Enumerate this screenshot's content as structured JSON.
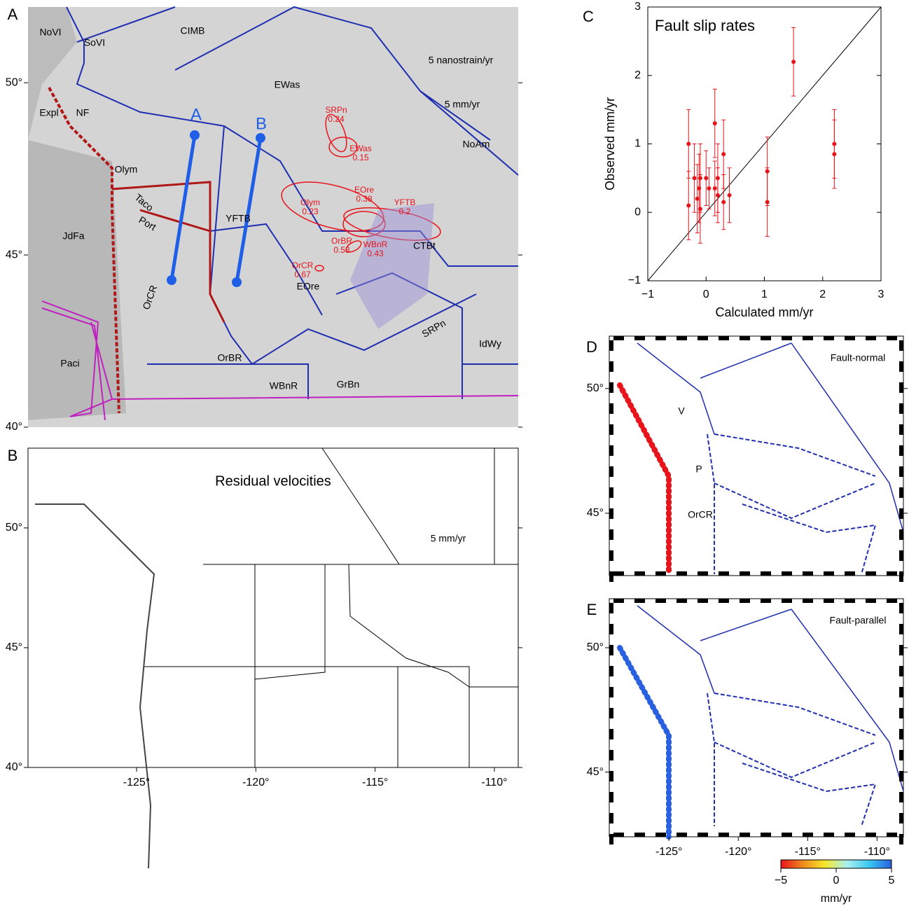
{
  "chart_data": [
    {
      "type": "map",
      "panel": "A",
      "labels": [
        "NoVI",
        "SoVI",
        "CIMB",
        "EWas",
        "NoAm",
        "Expl",
        "NF",
        "Olym",
        "Taco",
        "Port",
        "YFTB",
        "JdFa",
        "OrCR",
        "Paci",
        "OrBR",
        "WBnR",
        "GrBn",
        "EOre",
        "CTBt",
        "SRPn",
        "IdWy",
        "A",
        "B",
        "5  nanostrain/yr",
        "5 mm/yr"
      ],
      "strain_labels": [
        {
          "name": "SRPn",
          "value": 0.24
        },
        {
          "name": "EWas",
          "value": 0.15
        },
        {
          "name": "EOre",
          "value": 0.38
        },
        {
          "name": "Olym",
          "value": 0.23
        },
        {
          "name": "YFTB",
          "value": 0.2
        },
        {
          "name": "OrBR",
          "value": 0.53
        },
        {
          "name": "WBnR",
          "value": 0.43
        },
        {
          "name": "OrCR",
          "value": 0.67
        }
      ],
      "ylim": [
        40,
        52.2
      ],
      "yticks": [
        {
          "value": 50,
          "label": "50°"
        },
        {
          "value": 45,
          "label": "45°"
        },
        {
          "value": 40,
          "label": "40°"
        }
      ]
    },
    {
      "type": "map",
      "panel": "B",
      "title": "Residual velocities",
      "labels": [
        "5 mm/yr"
      ],
      "xlim": [
        -129.55,
        -109.0
      ],
      "xticks": [
        {
          "value": -125,
          "label": "-125°"
        },
        {
          "value": -120,
          "label": "-120°"
        },
        {
          "value": -115,
          "label": "-115°"
        },
        {
          "value": -110,
          "label": "-110°"
        }
      ],
      "ylim": [
        40,
        53.33
      ],
      "yticks": [
        {
          "value": 50,
          "label": "50°"
        },
        {
          "value": 45,
          "label": "45°"
        },
        {
          "value": 40,
          "label": "40°"
        }
      ]
    },
    {
      "type": "scatter",
      "panel": "C",
      "title": "Fault slip rates",
      "x_label": "Calculated mm/yr",
      "y_label": "Observed mm/yr",
      "xlim": [
        -1,
        3
      ],
      "ylim": [
        -1,
        3
      ],
      "xticks": [
        {
          "value": -1,
          "label": "−1"
        },
        0,
        1,
        2,
        3
      ],
      "yticks": [
        {
          "value": -1,
          "label": "−1"
        },
        0,
        1,
        2,
        3
      ],
      "series": [
        {
          "color": "#e8141b",
          "x": [
            -0.3,
            -0.3,
            -0.2,
            -0.15,
            -0.12,
            -0.1,
            -0.1,
            0.0,
            0.05,
            0.15,
            0.15,
            0.2,
            0.2,
            0.3,
            0.3,
            0.4,
            1.05,
            1.05,
            1.5,
            2.2,
            2.2
          ],
          "y": [
            1.0,
            0.1,
            0.5,
            0.2,
            0.35,
            0.05,
            0.5,
            0.5,
            0.35,
            1.3,
            0.35,
            0.5,
            0.25,
            0.85,
            0.15,
            0.25,
            0.6,
            0.15,
            2.2,
            0.85,
            1.0
          ],
          "error": [
            0.5,
            0.5,
            0.5,
            0.5,
            0.5,
            0.5,
            0.5,
            0.4,
            0.3,
            0.5,
            0.4,
            0.5,
            0.4,
            0.5,
            0.4,
            0.4,
            0.5,
            0.5,
            0.5,
            0.5,
            0.5
          ]
        }
      ]
    },
    {
      "type": "map",
      "panel": "D",
      "labels": [
        "Fault-normal",
        "V",
        "P",
        "OrCR"
      ],
      "ylim": [
        42.5,
        52.1
      ],
      "yticks": [
        {
          "value": 50,
          "label": "50°"
        },
        {
          "value": 45,
          "label": "45°"
        }
      ]
    },
    {
      "type": "map",
      "panel": "E",
      "labels": [
        "Fault-parallel"
      ],
      "xlim": [
        -129.3,
        -108.1
      ],
      "xticks": [
        {
          "value": -125,
          "label": "-125°"
        },
        {
          "value": -120,
          "label": "-120°"
        },
        {
          "value": -115,
          "label": "-115°"
        },
        {
          "value": -110,
          "label": "-110°"
        }
      ],
      "ylim": [
        42.4,
        51.97
      ],
      "yticks": [
        {
          "value": 50,
          "label": "50°"
        },
        {
          "value": 45,
          "label": "45°"
        }
      ],
      "colorbar": {
        "label": "mm/yr",
        "lim": [
          -5,
          5
        ],
        "ticks": [
          {
            "value": -5,
            "label": "−5"
          },
          0,
          5
        ],
        "colors": [
          "#e8141b",
          "#f08a1c",
          "#f6e82a",
          "#a8f0f0",
          "#38c8f0",
          "#2860e0"
        ]
      }
    }
  ]
}
